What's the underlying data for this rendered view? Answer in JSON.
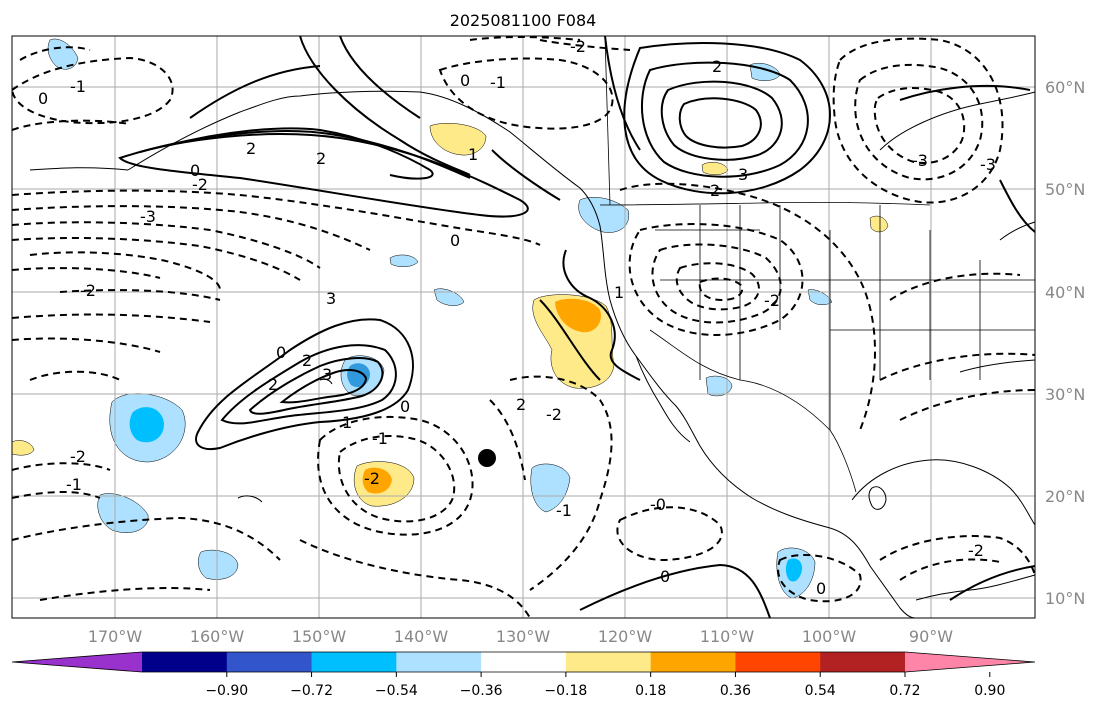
{
  "title": "2025081100 F084",
  "lon_labels": [
    "170°W",
    "160°W",
    "150°W",
    "140°W",
    "130°W",
    "120°W",
    "110°W",
    "100°W",
    "90°W"
  ],
  "lat_labels": [
    "60°N",
    "50°N",
    "40°N",
    "30°N",
    "20°N",
    "10°N"
  ],
  "colorbar": {
    "colors": [
      "#9932CC",
      "#00008B",
      "#3355CC",
      "#00BFFF",
      "#ADE1FF",
      "#FFFFFF",
      "#FFEA8A",
      "#FFA500",
      "#FF4500",
      "#B22222",
      "#FF85A8"
    ],
    "tick_labels": [
      "−0.90",
      "−0.72",
      "−0.54",
      "−0.36",
      "−0.18",
      "0.18",
      "0.36",
      "0.54",
      "0.72",
      "0.90"
    ]
  },
  "contour_labels": [
    "2",
    "-2",
    "0",
    "-1",
    "0",
    "2",
    "3",
    "-3",
    "0",
    "2",
    "-2",
    "2",
    "-3",
    "1",
    "0",
    "-2",
    "-1",
    "2",
    "3",
    "-2",
    "0",
    "-1",
    "3",
    "2",
    "1",
    "-2",
    "-1",
    "2",
    "-2",
    "0",
    "1",
    "-2",
    "-0",
    "0",
    "-2",
    "0",
    "-3",
    "-1"
  ],
  "fill_colors": {
    "light_blue": "#ADE1FF",
    "blue": "#00BFFF",
    "light_yellow": "#FFEA8A",
    "orange": "#FFA500"
  },
  "marker_color": "#000000"
}
